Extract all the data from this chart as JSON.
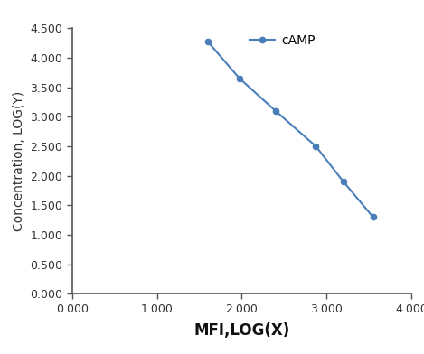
{
  "x": [
    1.6,
    1.975,
    2.4,
    2.875,
    3.2,
    3.55
  ],
  "y": [
    4.275,
    3.65,
    3.1,
    2.5,
    1.9,
    1.3
  ],
  "line_color": "#4a7ebb",
  "marker_style": "o",
  "marker_size": 4.5,
  "line_width": 1.5,
  "xlabel": "MFI,LOG(X)",
  "ylabel": "Concentration, LOG(Y)",
  "legend_label": "cAMP",
  "xlim": [
    0.0,
    4.0
  ],
  "ylim": [
    0.0,
    4.5
  ],
  "xticks": [
    0.0,
    1.0,
    2.0,
    3.0,
    4.0
  ],
  "yticks": [
    0.0,
    0.5,
    1.0,
    1.5,
    2.0,
    2.5,
    3.0,
    3.5,
    4.0,
    4.5
  ],
  "xtick_labels": [
    "0.000",
    "1.000",
    "2.000",
    "3.000",
    "4.000"
  ],
  "ytick_labels": [
    "0.000",
    "0.500",
    "1.000",
    "1.500",
    "2.000",
    "2.500",
    "3.000",
    "3.500",
    "4.000",
    "4.500"
  ],
  "background_color": "#ffffff",
  "xlabel_fontsize": 12,
  "ylabel_fontsize": 10,
  "tick_fontsize": 9,
  "legend_fontsize": 10,
  "spine_color": "#555555",
  "tick_color": "#555555"
}
